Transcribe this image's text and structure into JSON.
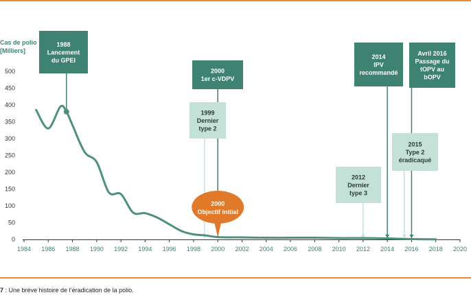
{
  "caption": {
    "number": "7",
    "text": " : Une brève histoire de l’éradication de la polio."
  },
  "chart_data": {
    "type": "line",
    "ylabel": [
      "Cas de polio",
      "[Milliers]"
    ],
    "xlim": [
      1984,
      2020
    ],
    "ylim": [
      0,
      500
    ],
    "x_ticks": [
      1984,
      1986,
      1988,
      1990,
      1992,
      1994,
      1996,
      1998,
      2000,
      2002,
      2004,
      2006,
      2008,
      2010,
      2012,
      2014,
      2016,
      2018,
      2020
    ],
    "y_ticks": [
      0,
      50,
      100,
      150,
      200,
      250,
      300,
      350,
      400,
      450,
      500
    ],
    "series": [
      {
        "x": [
          1985,
          1986,
          1987,
          1987.5,
          1988,
          1989,
          1990,
          1991,
          1992,
          1993,
          1994,
          1995,
          1996,
          1997,
          1998,
          1999,
          2000,
          2002,
          2004,
          2006,
          2008,
          2010,
          2012,
          2014,
          2015,
          2016,
          2017,
          2018
        ],
        "values": [
          385,
          330,
          395,
          380,
          340,
          260,
          230,
          140,
          135,
          80,
          78,
          65,
          45,
          25,
          15,
          12,
          7,
          6,
          5,
          5,
          5,
          4,
          4,
          3,
          2,
          1,
          0.5,
          0.3
        ],
        "marker_x": [
          1987.5
        ],
        "marker_y": [
          380
        ]
      }
    ],
    "colors": {
      "line": "#4e8f7d",
      "dark_box": "#3e8272",
      "light_box": "#c4e1d8",
      "goal": "#e1792a",
      "tick_text": "#3e8272",
      "axis": "#333333"
    },
    "annotations": [
      {
        "id": "1988-gpei",
        "style": "dark",
        "year": 1987.5,
        "lines": [
          "1988",
          "Lancement",
          "du GPEI"
        ]
      },
      {
        "id": "2000-cvdpv",
        "style": "dark",
        "year": 2000,
        "lines": [
          "2000",
          "1er c-VDPV"
        ]
      },
      {
        "id": "1999-type2",
        "style": "light",
        "year": 1998.9,
        "lines": [
          "1999",
          "Dernier",
          "type 2"
        ]
      },
      {
        "id": "2000-goal",
        "style": "goal",
        "year": 2000,
        "lines": [
          "2000",
          "Objectif initial"
        ]
      },
      {
        "id": "2012-type3",
        "style": "light",
        "year": 2012,
        "lines": [
          "2012",
          "Dernier",
          "type 3"
        ]
      },
      {
        "id": "2014-ipv",
        "style": "dark",
        "year": 2014,
        "lines": [
          "2014",
          "IPV",
          "recommandé"
        ]
      },
      {
        "id": "2015-type2",
        "style": "light",
        "year": 2015.4,
        "lines": [
          "2015",
          "Type 2",
          "éradicaqué"
        ]
      },
      {
        "id": "2016-topv",
        "style": "dark",
        "year": 2016,
        "lines": [
          "Avril 2016",
          "Passage du",
          "tOPV au",
          "bOPV"
        ]
      }
    ]
  }
}
